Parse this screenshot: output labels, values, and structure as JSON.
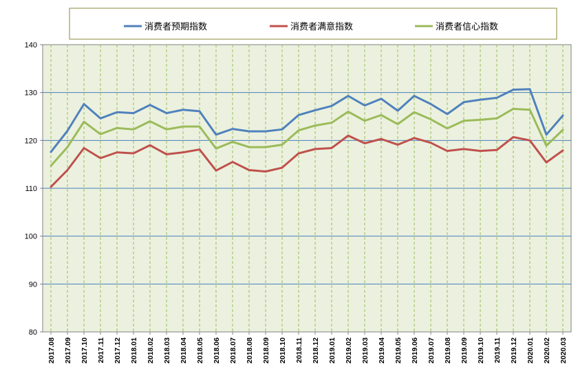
{
  "chart_data": {
    "type": "line",
    "title": "",
    "xlabel": "",
    "ylabel": "",
    "ylim": [
      80,
      140
    ],
    "yticks": [
      80,
      90,
      100,
      110,
      120,
      130,
      140
    ],
    "grid": true,
    "legend_position": "top",
    "x": [
      "2017.08",
      "2017.09",
      "2017.10",
      "2017.11",
      "2017.12",
      "2018.01",
      "2018.02",
      "2018.03",
      "2018.04",
      "2018.05",
      "2018.06",
      "2018.07",
      "2018.08",
      "2018.09",
      "2018.10",
      "2018.11",
      "2018.12",
      "2019.01",
      "2019.02",
      "2019.03",
      "2019.04",
      "2019.05",
      "2019.06",
      "2019.07",
      "2019.08",
      "2019.09",
      "2019.10",
      "2019.11",
      "2019.12",
      "2020.01",
      "2020.02",
      "2020.03"
    ],
    "series": [
      {
        "name": "消费者预期指数",
        "color": "#4f81bd",
        "values": [
          117.6,
          122.0,
          127.6,
          124.6,
          125.9,
          125.7,
          127.4,
          125.7,
          126.4,
          126.1,
          121.2,
          122.4,
          121.9,
          121.9,
          122.3,
          125.3,
          126.3,
          127.2,
          129.3,
          127.3,
          128.7,
          126.2,
          129.3,
          127.6,
          125.5,
          128.0,
          128.5,
          128.9,
          130.6,
          130.7,
          121.2,
          125.2
        ]
      },
      {
        "name": "消费者满意指数",
        "color": "#c0504d",
        "values": [
          110.3,
          113.8,
          118.4,
          116.3,
          117.5,
          117.3,
          119.0,
          117.1,
          117.5,
          118.1,
          113.7,
          115.5,
          113.8,
          113.5,
          114.3,
          117.3,
          118.2,
          118.4,
          121.0,
          119.4,
          120.3,
          119.1,
          120.5,
          119.5,
          117.8,
          118.2,
          117.8,
          118.0,
          120.7,
          120.0,
          115.4,
          117.9
        ]
      },
      {
        "name": "消费者信心指数",
        "color": "#9bbb59",
        "values": [
          114.7,
          118.6,
          123.9,
          121.3,
          122.6,
          122.3,
          124.0,
          122.3,
          122.9,
          122.9,
          118.3,
          119.7,
          118.6,
          118.6,
          119.1,
          122.1,
          123.1,
          123.7,
          126.0,
          124.1,
          125.3,
          123.4,
          125.9,
          124.4,
          122.5,
          124.1,
          124.3,
          124.6,
          126.6,
          126.4,
          118.9,
          122.2
        ]
      }
    ]
  }
}
